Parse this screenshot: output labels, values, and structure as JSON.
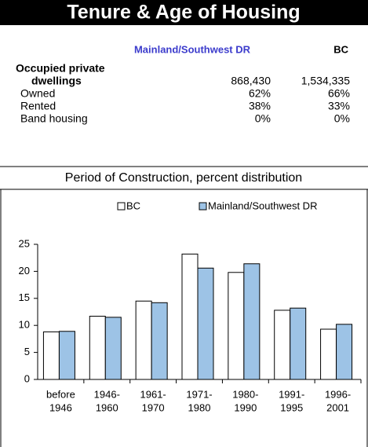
{
  "header": {
    "title": "Tenure & Age of Housing"
  },
  "table": {
    "columns": [
      "Mainland/Southwest DR",
      "BC"
    ],
    "rows": [
      {
        "label": [
          "Occupied private",
          "dwellings"
        ],
        "values": [
          "868,430",
          "1,534,335"
        ]
      },
      {
        "label": [
          "Owned"
        ],
        "values": [
          "62%",
          "66%"
        ]
      },
      {
        "label": [
          "Rented"
        ],
        "values": [
          "38%",
          "33%"
        ]
      },
      {
        "label": [
          "Band housing"
        ],
        "values": [
          "0%",
          "0%"
        ]
      }
    ]
  },
  "chart_data": {
    "type": "bar",
    "title": "Period of Construction, percent distribution",
    "categories": [
      [
        "before",
        "1946"
      ],
      [
        "1946-",
        "1960"
      ],
      [
        "1961-",
        "1970"
      ],
      [
        "1971-",
        "1980"
      ],
      [
        "1980-",
        "1990"
      ],
      [
        "1991-",
        "1995"
      ],
      [
        "1996-",
        "2001"
      ]
    ],
    "series": [
      {
        "name": "BC",
        "color": "#ffffff",
        "values": [
          8.8,
          11.7,
          14.5,
          23.2,
          19.8,
          12.8,
          9.3
        ]
      },
      {
        "name": "Mainland/Southwest DR",
        "color": "#9dc3e6",
        "values": [
          8.9,
          11.5,
          14.2,
          20.6,
          21.4,
          13.2,
          10.2
        ]
      }
    ],
    "ylim": [
      0,
      25
    ],
    "yticks": [
      0,
      5,
      10,
      15,
      20,
      25
    ],
    "grid": false,
    "legend": "top"
  }
}
